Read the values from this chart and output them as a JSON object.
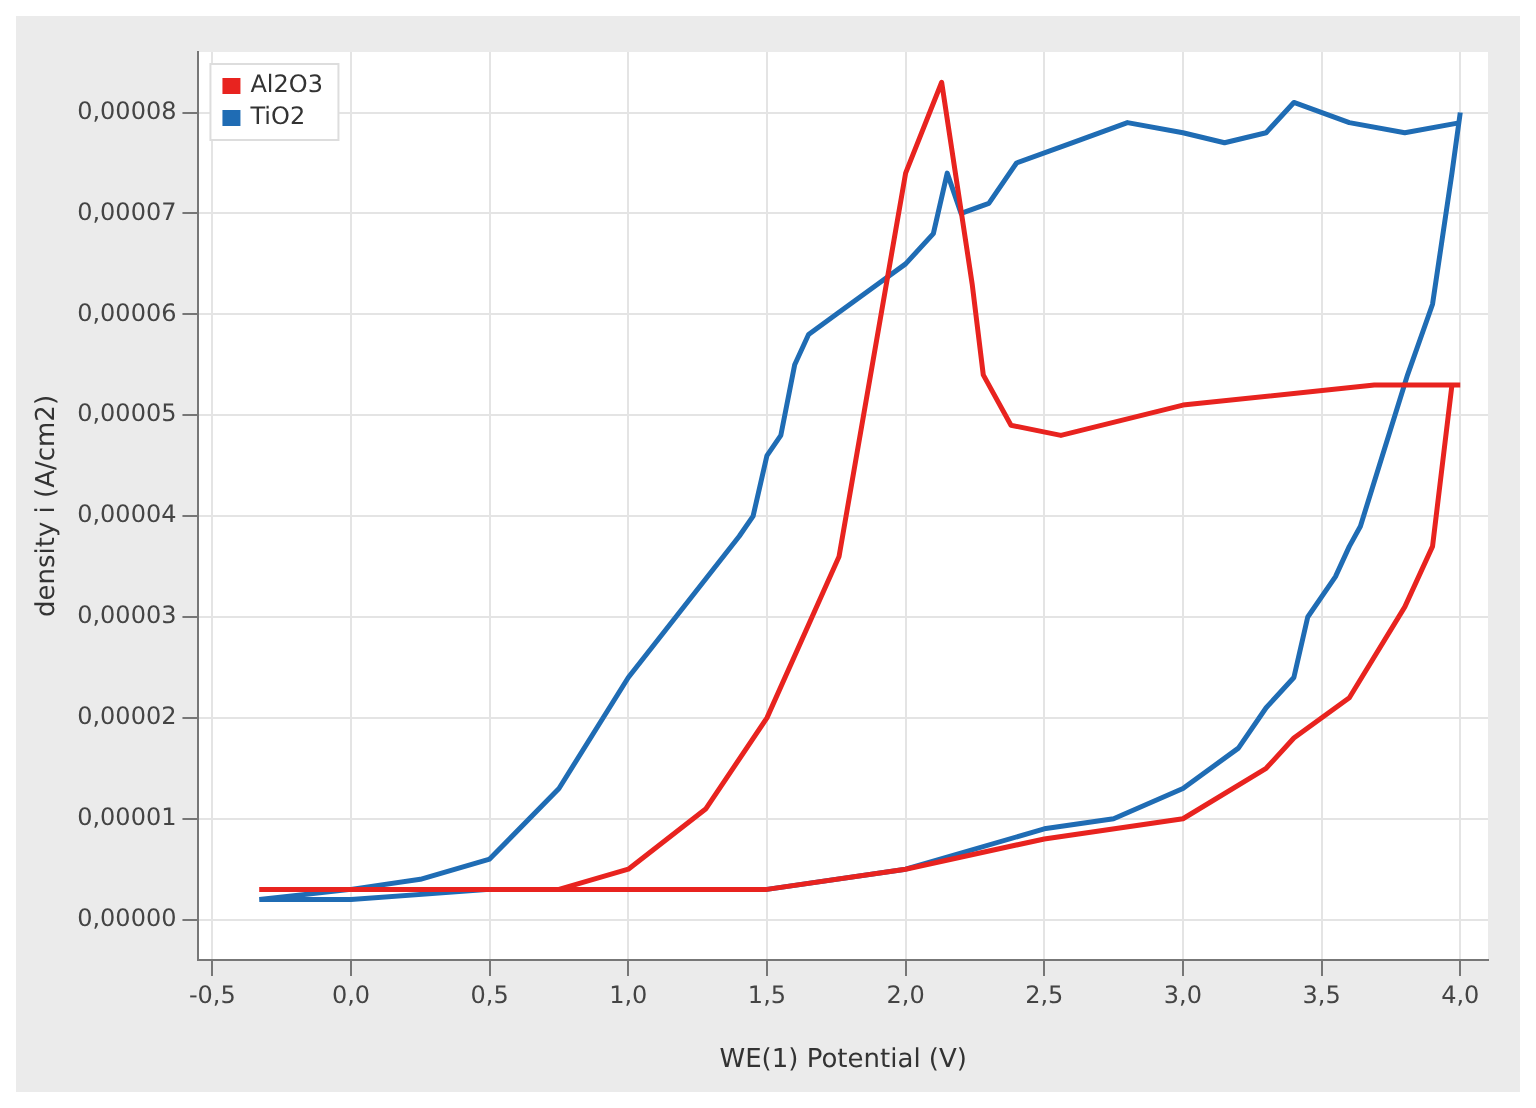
{
  "chart_data": {
    "type": "line",
    "xlabel": "WE(1) Potential (V)",
    "ylabel": "density i (A/cm2)",
    "xlim": [
      -0.55,
      4.1
    ],
    "ylim": [
      -4e-06,
      8.6e-05
    ],
    "xticks": [
      {
        "value": -0.5,
        "label": "-0,5"
      },
      {
        "value": 0,
        "label": "0,0"
      },
      {
        "value": 0.5,
        "label": "0,5"
      },
      {
        "value": 1,
        "label": "1,0"
      },
      {
        "value": 1.5,
        "label": "1,5"
      },
      {
        "value": 2,
        "label": "2,0"
      },
      {
        "value": 2.5,
        "label": "2,5"
      },
      {
        "value": 3,
        "label": "3,0"
      },
      {
        "value": 3.5,
        "label": "3,5"
      },
      {
        "value": 4,
        "label": "4,0"
      }
    ],
    "yticks": [
      {
        "value": 0,
        "label": "0,00000"
      },
      {
        "value": 1e-05,
        "label": "0,00001"
      },
      {
        "value": 2e-05,
        "label": "0,00002"
      },
      {
        "value": 3e-05,
        "label": "0,00003"
      },
      {
        "value": 4e-05,
        "label": "0,00004"
      },
      {
        "value": 5e-05,
        "label": "0,00005"
      },
      {
        "value": 6e-05,
        "label": "0,00006"
      },
      {
        "value": 7e-05,
        "label": "0,00007"
      },
      {
        "value": 8e-05,
        "label": "0,00008"
      }
    ],
    "grid": true,
    "legend": "top left",
    "marker": "none",
    "line_style": "solid",
    "series": [
      {
        "name": "Al2O3",
        "color": "#e8231f",
        "x": [
          -0.33,
          0,
          0.5,
          0.75,
          1,
          1.28,
          1.5,
          1.76,
          2,
          2.13,
          2.24,
          2.28,
          2.38,
          2.56,
          3,
          3.69,
          4
        ],
        "values": [
          3e-06,
          3e-06,
          3e-06,
          3e-06,
          5e-06,
          1.1e-05,
          2e-05,
          3.6e-05,
          7.4e-05,
          8.3e-05,
          6.3e-05,
          5.4e-05,
          4.9e-05,
          4.8e-05,
          5.1e-05,
          5.3e-05,
          5.3e-05
        ]
      },
      {
        "color": "#e8231f",
        "x": [
          -0.33,
          0.5,
          1,
          1.5,
          2,
          2.5,
          3,
          3.3,
          3.4,
          3.6,
          3.8,
          3.9,
          3.97
        ],
        "values": [
          3e-06,
          3e-06,
          3e-06,
          3e-06,
          5e-06,
          8e-06,
          1e-05,
          1.5e-05,
          1.8e-05,
          2.2e-05,
          3.1e-05,
          3.7e-05,
          5.3e-05
        ]
      },
      {
        "name": "TiO2",
        "color": "#1f6cb4",
        "x": [
          -0.33,
          0,
          0.5,
          1,
          1.5,
          2,
          2.5,
          2.75,
          3,
          3.2,
          3.3,
          3.4,
          3.45,
          3.55,
          3.6,
          3.64,
          3.81,
          3.9,
          3.97,
          4
        ],
        "values": [
          2e-06,
          2e-06,
          3e-06,
          3e-06,
          3e-06,
          5e-06,
          9e-06,
          1e-05,
          1.3e-05,
          1.7e-05,
          2.1e-05,
          2.4e-05,
          3e-05,
          3.4e-05,
          3.7e-05,
          3.9e-05,
          5.4e-05,
          6.1e-05,
          7.4e-05,
          8e-05
        ]
      },
      {
        "color": "#1f6cb4",
        "x": [
          -0.33,
          0,
          0.25,
          0.5,
          0.75,
          1,
          1.4,
          1.45,
          1.5,
          1.55,
          1.6,
          1.65,
          1.75,
          1.9,
          2,
          2.1,
          2.15,
          2.2,
          2.3,
          2.4,
          2.6,
          2.8,
          3,
          3.15,
          3.3,
          3.4,
          3.6,
          3.8,
          4
        ],
        "values": [
          2e-06,
          3e-06,
          4e-06,
          6e-06,
          1.3e-05,
          2.4e-05,
          3.8e-05,
          4e-05,
          4.6e-05,
          4.8e-05,
          5.5e-05,
          5.8e-05,
          6e-05,
          6.3e-05,
          6.5e-05,
          6.8e-05,
          7.4e-05,
          7e-05,
          7.1e-05,
          7.5e-05,
          7.7e-05,
          7.9e-05,
          7.8e-05,
          7.7e-05,
          7.8e-05,
          8.1e-05,
          7.9e-05,
          7.8e-05,
          7.9e-05
        ]
      }
    ]
  }
}
